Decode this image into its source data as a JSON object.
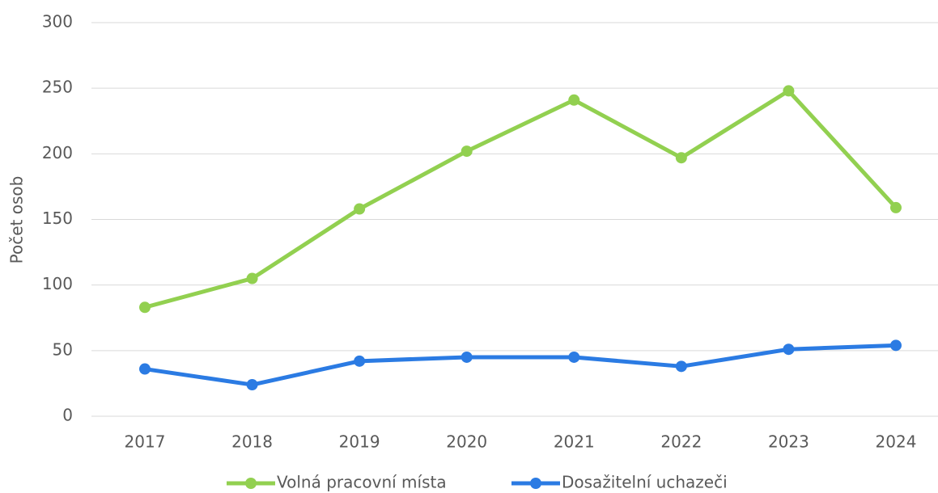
{
  "chart_data": {
    "type": "line",
    "y_label": "Počet osob",
    "categories": [
      "2017",
      "2018",
      "2019",
      "2020",
      "2021",
      "2022",
      "2023",
      "2024"
    ],
    "series": [
      {
        "name": "Volná pracovní místa",
        "color": "#92d050",
        "values": [
          83,
          105,
          158,
          202,
          241,
          197,
          248,
          159
        ]
      },
      {
        "name": "Dosažitelní uchazeči",
        "color": "#2b7be3",
        "values": [
          36,
          24,
          42,
          45,
          45,
          38,
          51,
          54
        ]
      }
    ],
    "ylim": [
      0,
      300
    ],
    "yticks": [
      0,
      50,
      100,
      150,
      200,
      250,
      300
    ],
    "grid": true,
    "legend": "bottom"
  }
}
